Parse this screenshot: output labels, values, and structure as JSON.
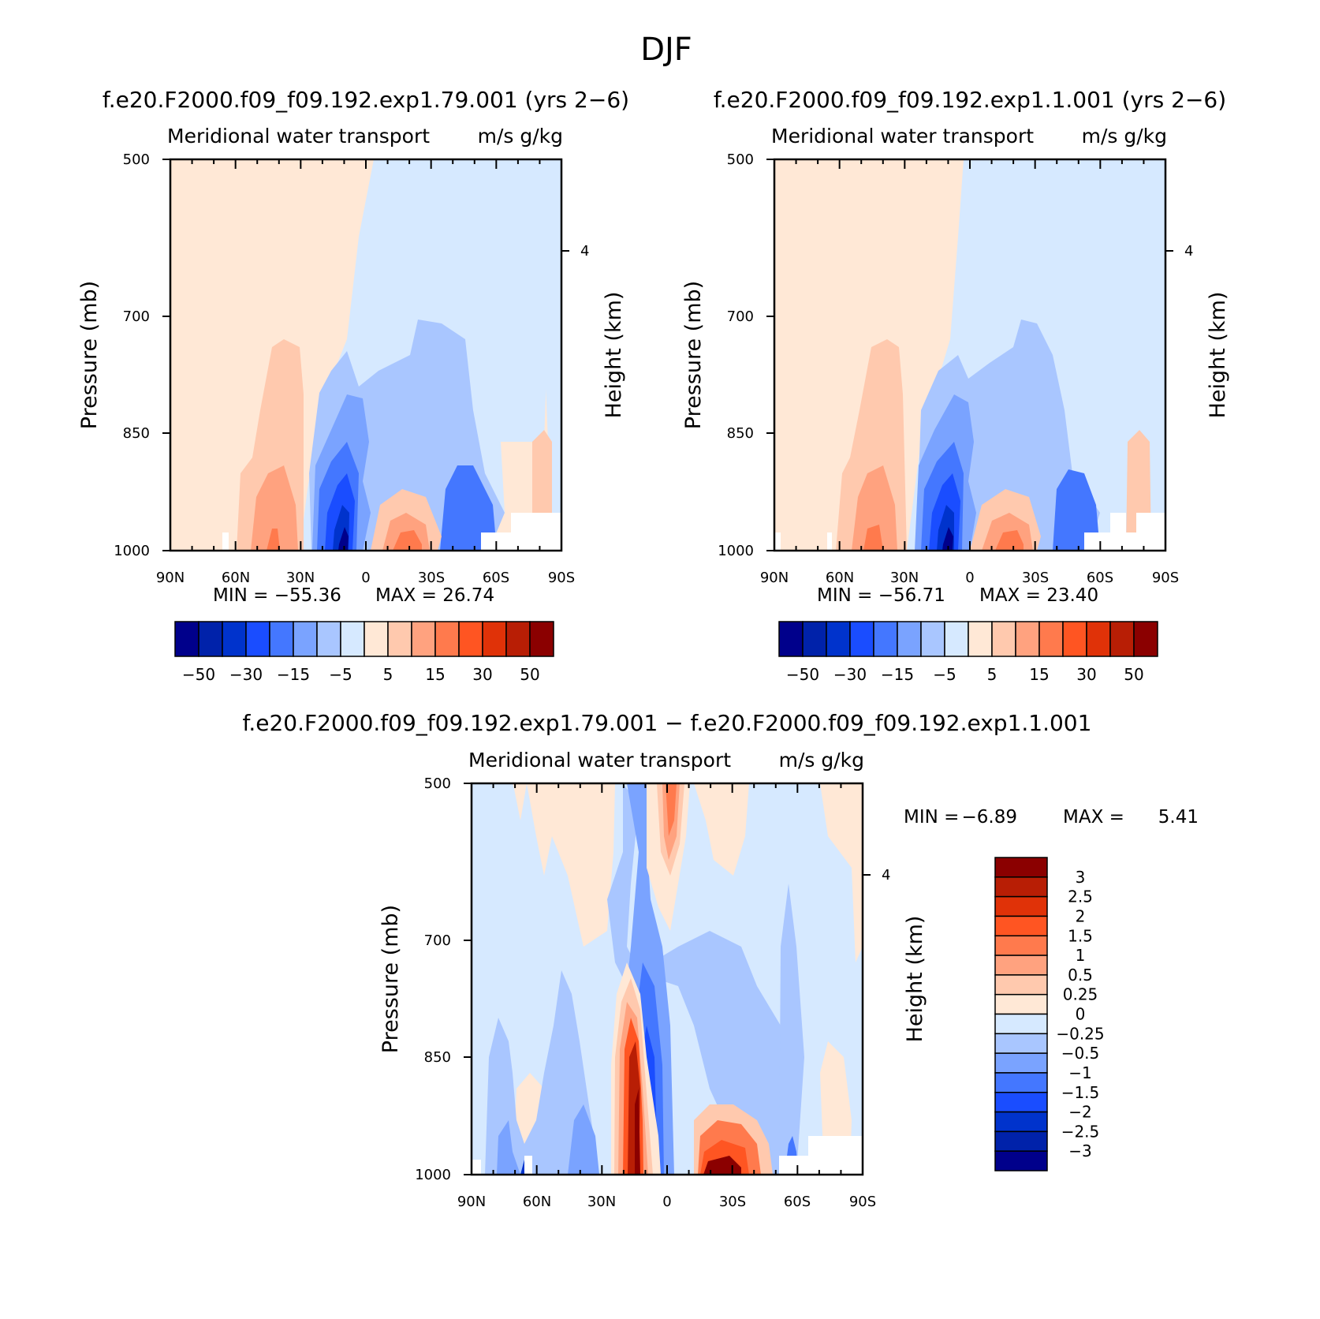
{
  "figure_title": "DJF",
  "palette_abs": [
    "#00008b",
    "#0022aa",
    "#0033cc",
    "#1a4dff",
    "#4477ff",
    "#7aa3ff",
    "#a9c6ff",
    "#d6e9ff",
    "#ffe8d6",
    "#ffc9ae",
    "#ffa27f",
    "#ff7a4d",
    "#ff5522",
    "#e03208",
    "#b81e05",
    "#8b0000"
  ],
  "palette_diff": [
    "#00008b",
    "#0022aa",
    "#0033cc",
    "#1a4dff",
    "#4477ff",
    "#7aa3ff",
    "#a9c6ff",
    "#d6e9ff",
    "#ffe8d6",
    "#ffc9ae",
    "#ffa27f",
    "#ff7a4d",
    "#ff5522",
    "#e03208",
    "#b81e05",
    "#8b0000"
  ],
  "chart_data": [
    {
      "type": "heatmap",
      "title": "f.e20.F2000.f09_f09.192.exp1.79.001 (yrs 2−6)",
      "subtitle_left": "Meridional water transport",
      "subtitle_right": "m/s g/kg",
      "ylabel": "Pressure (mb)",
      "ylabel_right": "Height (km)",
      "x_ticks": [
        "90N",
        "60N",
        "30N",
        "0",
        "30S",
        "60S",
        "90S"
      ],
      "y_ticks": [
        "500",
        "700",
        "850",
        "1000"
      ],
      "y_right_ticks": [
        "4"
      ],
      "min_label": "MIN = −55.36",
      "max_label": "MAX =  26.74",
      "min": -55.36,
      "max": 26.74,
      "colorbar_labels": [
        "−50",
        "−30",
        "−15",
        "−5",
        "5",
        "15",
        "30",
        "50"
      ]
    },
    {
      "type": "heatmap",
      "title": "f.e20.F2000.f09_f09.192.exp1.1.001 (yrs 2−6)",
      "subtitle_left": "Meridional water transport",
      "subtitle_right": "m/s g/kg",
      "ylabel": "Pressure (mb)",
      "ylabel_right": "Height (km)",
      "x_ticks": [
        "90N",
        "60N",
        "30N",
        "0",
        "30S",
        "60S",
        "90S"
      ],
      "y_ticks": [
        "500",
        "700",
        "850",
        "1000"
      ],
      "y_right_ticks": [
        "4"
      ],
      "min_label": "MIN = −56.71",
      "max_label": "MAX =  23.40",
      "min": -56.71,
      "max": 23.4,
      "colorbar_labels": [
        "−50",
        "−30",
        "−15",
        "−5",
        "5",
        "15",
        "30",
        "50"
      ]
    },
    {
      "type": "heatmap",
      "title": "f.e20.F2000.f09_f09.192.exp1.79.001 − f.e20.F2000.f09_f09.192.exp1.1.001",
      "subtitle_left": "Meridional water transport",
      "subtitle_right": "m/s g/kg",
      "ylabel": "Pressure (mb)",
      "ylabel_right": "Height (km)",
      "x_ticks": [
        "90N",
        "60N",
        "30N",
        "0",
        "30S",
        "60S",
        "90S"
      ],
      "y_ticks": [
        "500",
        "700",
        "850",
        "1000"
      ],
      "y_right_ticks": [
        "4"
      ],
      "min_label": "MIN =",
      "min_value": "−6.89",
      "max_label": "MAX =",
      "max_value": "5.41",
      "min": -6.89,
      "max": 5.41,
      "colorbar_labels": [
        "3",
        "2.5",
        "2",
        "1.5",
        "1",
        "0.5",
        "0.25",
        "0",
        "−0.25",
        "−0.5",
        "−1",
        "−1.5",
        "−2",
        "−2.5",
        "−3"
      ]
    }
  ]
}
